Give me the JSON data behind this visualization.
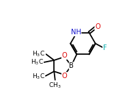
{
  "bg_color": "#ffffff",
  "atom_colors": {
    "C": "#000000",
    "N": "#1010cc",
    "O": "#dd0000",
    "B": "#000000",
    "F": "#00aaaa",
    "H": "#1010cc"
  },
  "bond_color": "#000000",
  "bond_lw": 1.3,
  "figsize": [
    1.89,
    1.46
  ],
  "dpi": 100
}
